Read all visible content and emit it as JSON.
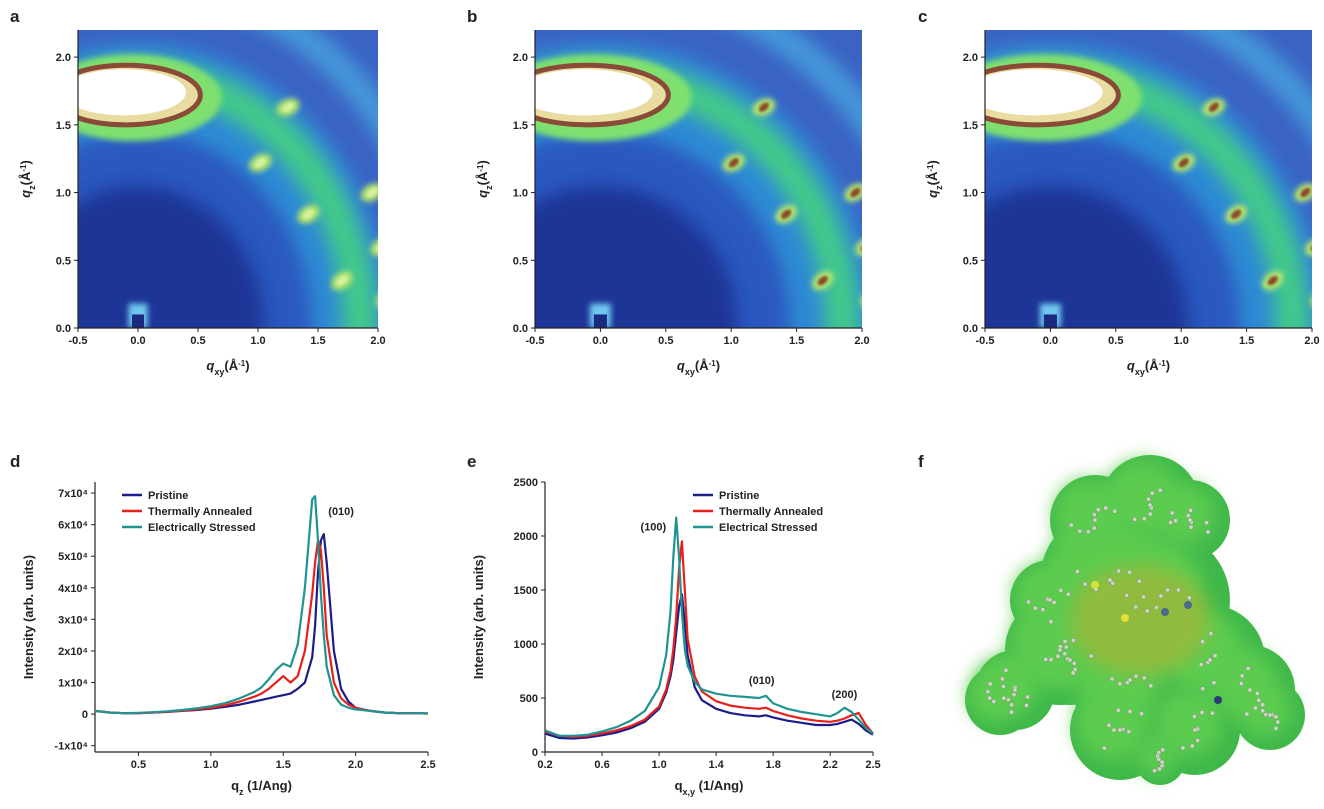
{
  "chart_data": [
    {
      "type": "heatmap",
      "panel": "a",
      "xlabel": [
        "q",
        "xy",
        "(Å",
        "-1",
        ")"
      ],
      "ylabel": [
        "q",
        "z",
        "(Å",
        "-1",
        ")"
      ],
      "xlim": [
        -0.5,
        2.0
      ],
      "ylim": [
        0,
        2.2
      ],
      "xticks": [
        -0.5,
        {
          "value": 0,
          "label": "0.0"
        },
        0.5,
        {
          "value": 1,
          "label": "1.0"
        },
        1.5,
        {
          "value": 2,
          "label": "2.0"
        }
      ],
      "yticks": [
        {
          "value": 0,
          "label": "0.0"
        },
        0.5,
        {
          "value": 1,
          "label": "1.0"
        },
        1.5,
        {
          "value": 2,
          "label": "2.0"
        }
      ]
    },
    {
      "type": "heatmap",
      "panel": "b",
      "xlabel": [
        "q",
        "xy",
        "(Å",
        "-1",
        ")"
      ],
      "ylabel": [
        "q",
        "z",
        "(Å",
        "-1",
        ")"
      ],
      "xlim": [
        -0.5,
        2.0
      ],
      "ylim": [
        0,
        2.2
      ],
      "xticks": [
        -0.5,
        {
          "value": 0,
          "label": "0.0"
        },
        0.5,
        {
          "value": 1,
          "label": "1.0"
        },
        1.5,
        {
          "value": 2,
          "label": "2.0"
        }
      ],
      "yticks": [
        {
          "value": 0,
          "label": "0.0"
        },
        0.5,
        {
          "value": 1,
          "label": "1.0"
        },
        1.5,
        {
          "value": 2,
          "label": "2.0"
        }
      ]
    },
    {
      "type": "heatmap",
      "panel": "c",
      "xlabel": [
        "q",
        "xy",
        "(Å",
        "-1",
        ")"
      ],
      "ylabel": [
        "q",
        "z",
        "(Å",
        "-1",
        ")"
      ],
      "xlim": [
        -0.5,
        2.0
      ],
      "ylim": [
        0,
        2.2
      ],
      "xticks": [
        -0.5,
        {
          "value": 0,
          "label": "0.0"
        },
        0.5,
        {
          "value": 1,
          "label": "1.0"
        },
        1.5,
        {
          "value": 2,
          "label": "2.0"
        }
      ],
      "yticks": [
        {
          "value": 0,
          "label": "0.0"
        },
        0.5,
        {
          "value": 1,
          "label": "1.0"
        },
        1.5,
        {
          "value": 2,
          "label": "2.0"
        }
      ]
    },
    {
      "type": "line",
      "panel": "d",
      "xlabel": [
        "q",
        "z",
        " (1/Ang)"
      ],
      "ylabel": "Intensity (arb. units)",
      "annotations": [
        "(010)"
      ],
      "xlim": [
        0.2,
        2.5
      ],
      "ylim": [
        -12000,
        73500
      ],
      "xticks": [
        0.5,
        {
          "value": 1,
          "label": "1.0"
        },
        1.5,
        {
          "value": 2,
          "label": "2.0"
        },
        2.5
      ],
      "yticks": [
        {
          "value": -10000,
          "label": "-1x10⁴"
        },
        0,
        {
          "value": 10000,
          "label": "1x10⁴"
        },
        {
          "value": 20000,
          "label": "2x10⁴"
        },
        {
          "value": 30000,
          "label": "3x10⁴"
        },
        {
          "value": 40000,
          "label": "4x10⁴"
        },
        {
          "value": 50000,
          "label": "5x10⁴"
        },
        {
          "value": 60000,
          "label": "6x10⁴"
        },
        {
          "value": 70000,
          "label": "7x10⁴"
        }
      ],
      "x": [
        0.2,
        0.3,
        0.4,
        0.5,
        0.6,
        0.7,
        0.8,
        0.9,
        1.0,
        1.1,
        1.2,
        1.3,
        1.35,
        1.4,
        1.45,
        1.5,
        1.55,
        1.6,
        1.65,
        1.7,
        1.72,
        1.74,
        1.76,
        1.78,
        1.8,
        1.85,
        1.9,
        1.95,
        2.0,
        2.1,
        2.2,
        2.3,
        2.4,
        2.5
      ],
      "series": [
        {
          "name": "Pristine",
          "color": "#1c1c8a",
          "values": [
            1000,
            500,
            300,
            300,
            500,
            700,
            1000,
            1300,
            1700,
            2300,
            3000,
            4000,
            4500,
            5000,
            5500,
            6000,
            6500,
            8000,
            10000,
            18000,
            28000,
            45000,
            55000,
            57000,
            48000,
            20000,
            8000,
            4000,
            2000,
            1000,
            500,
            300,
            300,
            200
          ]
        },
        {
          "name": "Thermally Annealed",
          "color": "#e8201c",
          "values": [
            1000,
            500,
            300,
            300,
            500,
            800,
            1100,
            1500,
            2000,
            2800,
            4000,
            5500,
            6500,
            8000,
            10000,
            12000,
            10000,
            12000,
            20000,
            38000,
            48000,
            55000,
            52000,
            40000,
            25000,
            10000,
            5000,
            3000,
            2000,
            1000,
            500,
            300,
            300,
            200
          ]
        },
        {
          "name": "Electrically Stressed",
          "color": "#1f9490",
          "values": [
            1000,
            500,
            300,
            400,
            600,
            900,
            1300,
            1800,
            2500,
            3500,
            5000,
            7000,
            8500,
            11000,
            14000,
            16000,
            15000,
            22000,
            40000,
            68000,
            69000,
            55000,
            38000,
            25000,
            15000,
            6000,
            3000,
            2000,
            1500,
            1000,
            500,
            300,
            300,
            200
          ]
        }
      ]
    },
    {
      "type": "line",
      "panel": "e",
      "xlabel": [
        "q",
        "x,y",
        " (1/Ang)"
      ],
      "ylabel": "Intensity (arb. units)",
      "annotations": [
        "(100)",
        "(010)",
        "(200)"
      ],
      "xlim": [
        0.2,
        2.5
      ],
      "ylim": [
        0,
        2500
      ],
      "xticks": [
        0.2,
        0.6,
        {
          "value": 1,
          "label": "1.0"
        },
        1.4,
        1.8,
        2.2,
        2.5
      ],
      "yticks": [
        0,
        500,
        1000,
        1500,
        2000,
        2500
      ],
      "x": [
        0.2,
        0.3,
        0.4,
        0.5,
        0.6,
        0.7,
        0.8,
        0.9,
        1.0,
        1.05,
        1.08,
        1.1,
        1.12,
        1.14,
        1.16,
        1.18,
        1.2,
        1.25,
        1.3,
        1.4,
        1.5,
        1.6,
        1.7,
        1.75,
        1.8,
        1.9,
        2.0,
        2.1,
        2.2,
        2.25,
        2.3,
        2.35,
        2.4,
        2.45,
        2.5
      ],
      "series": [
        {
          "name": "Pristine",
          "color": "#1c1c8a",
          "values": [
            170,
            130,
            125,
            135,
            155,
            180,
            220,
            280,
            400,
            550,
            700,
            850,
            1100,
            1350,
            1460,
            1200,
            900,
            600,
            480,
            400,
            360,
            340,
            330,
            340,
            320,
            290,
            270,
            250,
            250,
            260,
            280,
            300,
            260,
            200,
            160
          ]
        },
        {
          "name": "Thermally Annealed",
          "color": "#e8201c",
          "values": [
            190,
            150,
            140,
            150,
            170,
            200,
            240,
            300,
            420,
            580,
            750,
            950,
            1250,
            1700,
            1950,
            1500,
            1050,
            700,
            560,
            470,
            430,
            410,
            400,
            410,
            380,
            340,
            310,
            290,
            280,
            290,
            310,
            340,
            360,
            250,
            170
          ]
        },
        {
          "name": "Electrical Stressed",
          "color": "#1f9490",
          "values": [
            200,
            150,
            150,
            160,
            190,
            230,
            290,
            380,
            600,
            900,
            1300,
            1800,
            2170,
            1800,
            1300,
            950,
            800,
            650,
            580,
            540,
            520,
            510,
            500,
            520,
            450,
            400,
            370,
            350,
            330,
            360,
            410,
            370,
            300,
            220,
            170
          ]
        }
      ]
    },
    {
      "type": "image",
      "panel": "f"
    }
  ]
}
